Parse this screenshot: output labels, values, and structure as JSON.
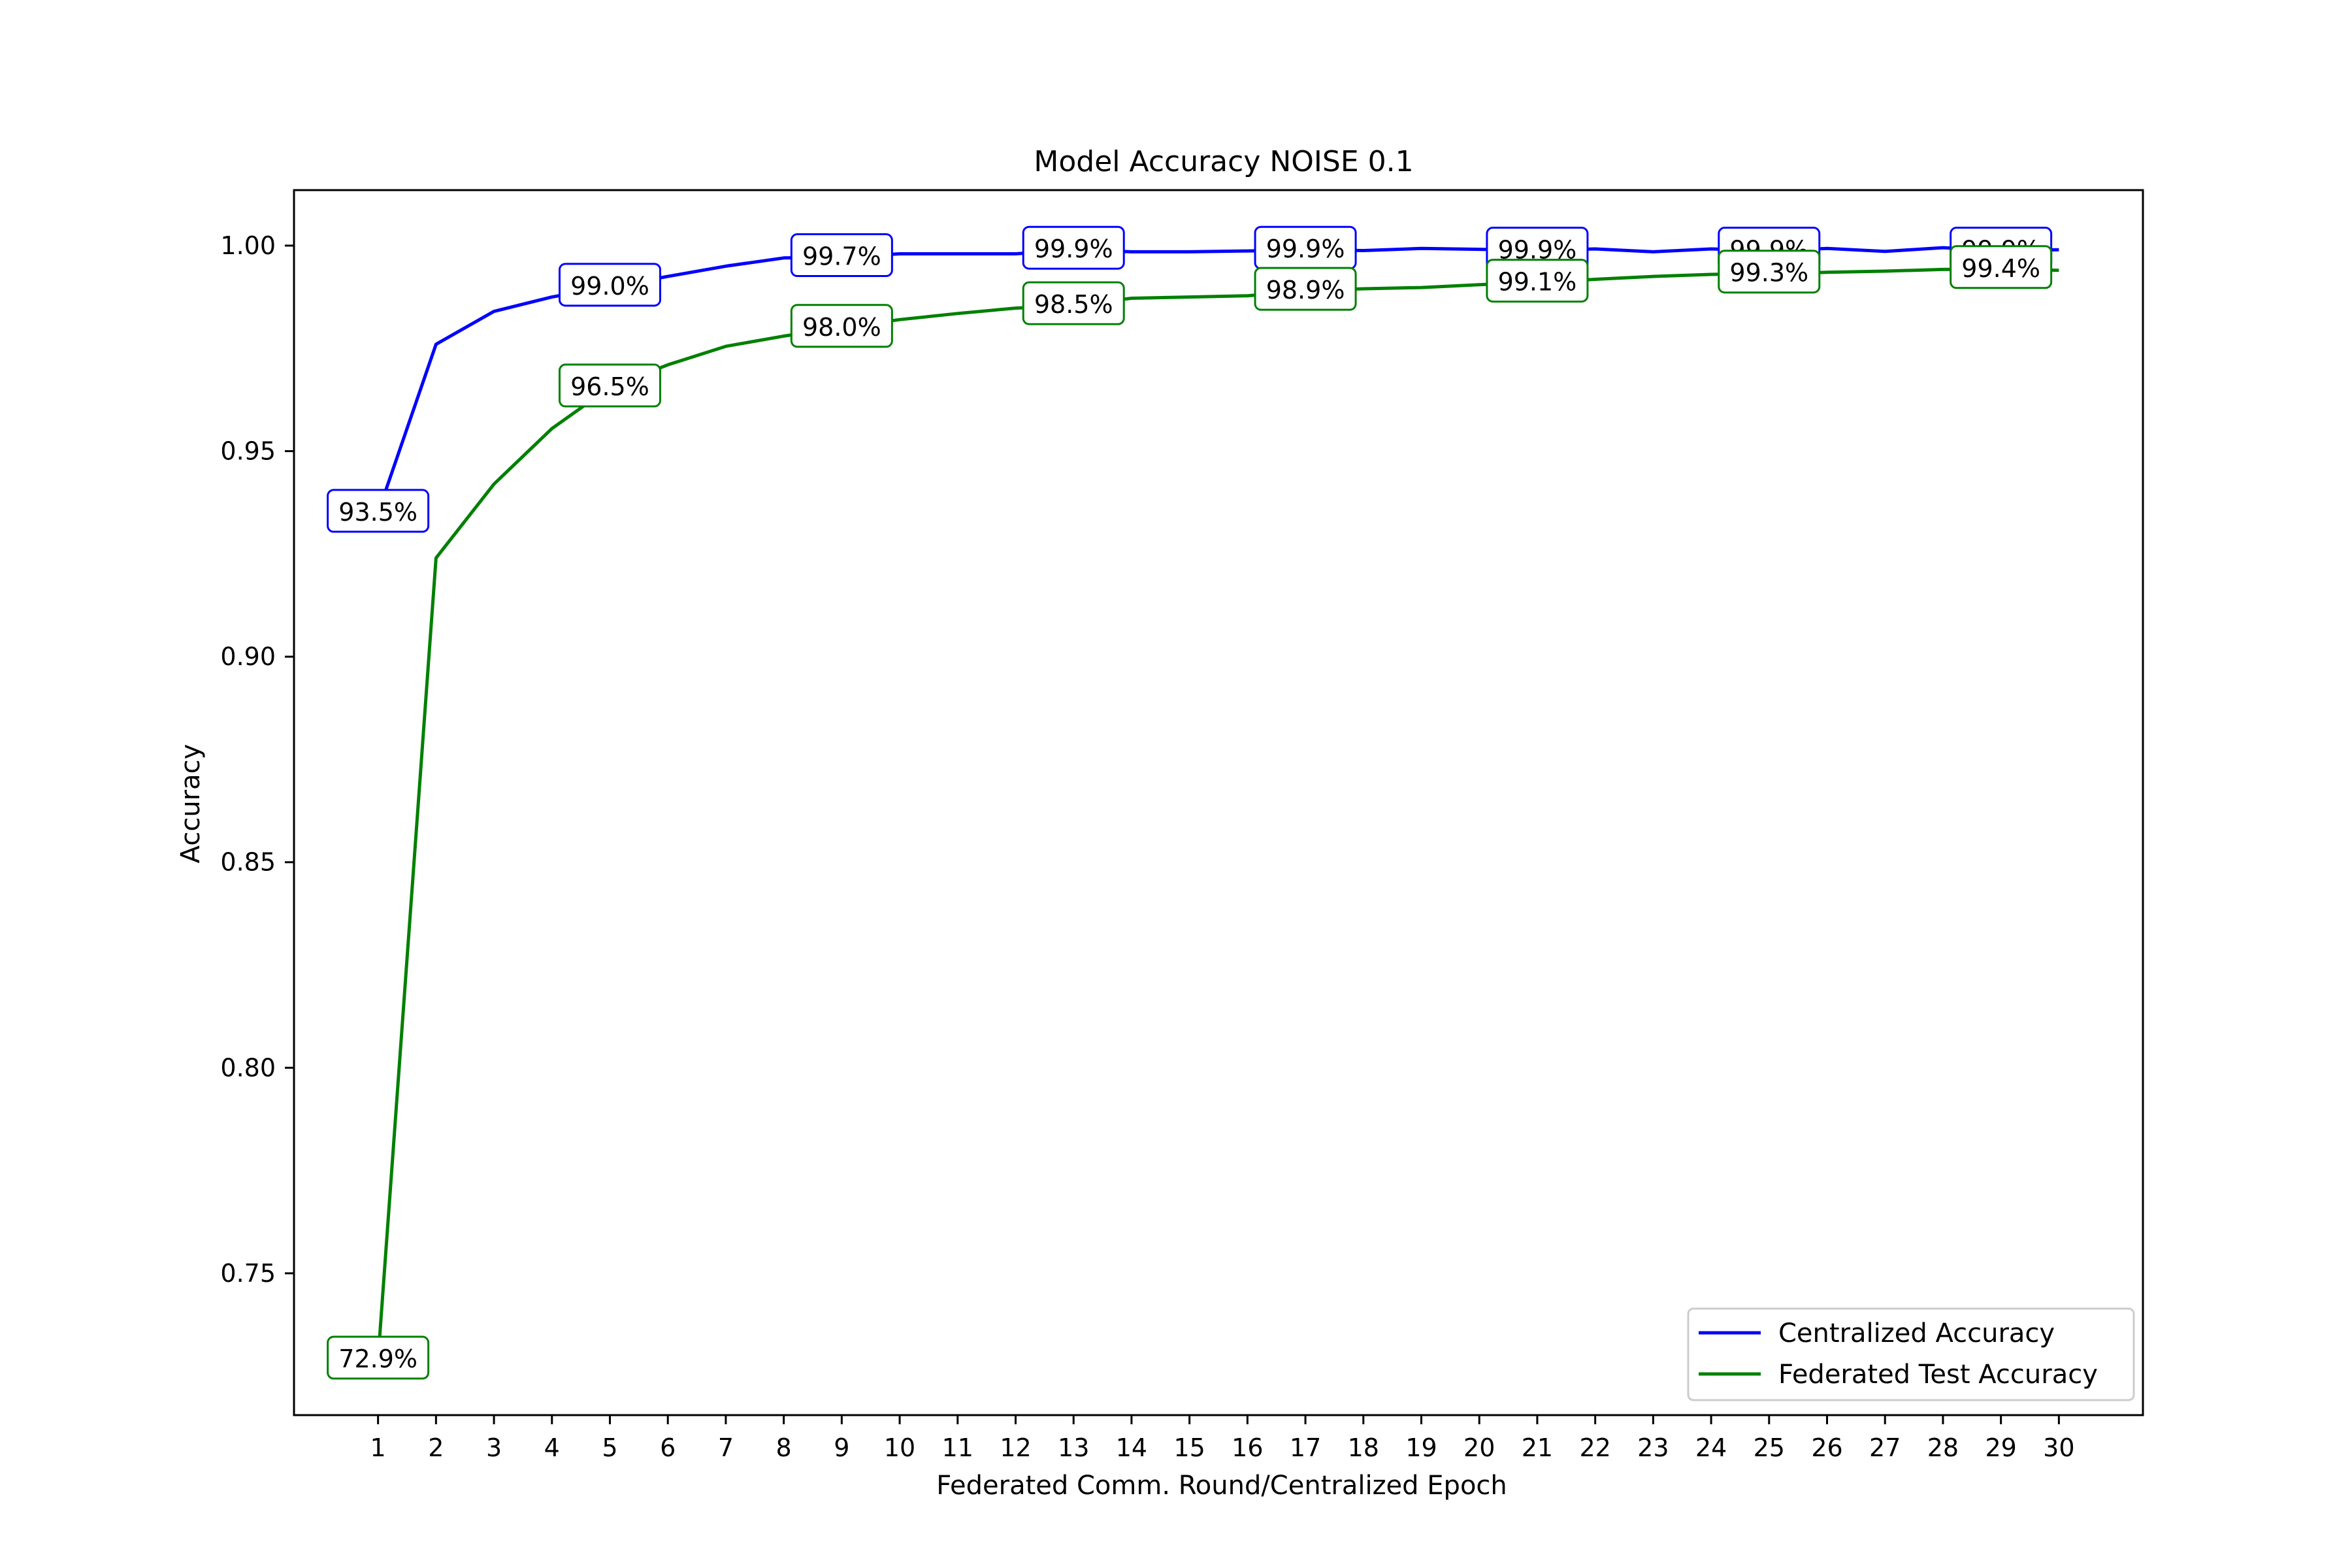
{
  "chart_data": {
    "type": "line",
    "title": "Model Accuracy NOISE 0.1",
    "xlabel": "Federated Comm. Round/Centralized Epoch",
    "ylabel": "Accuracy",
    "x": [
      1,
      2,
      3,
      4,
      5,
      6,
      7,
      8,
      9,
      10,
      11,
      12,
      13,
      14,
      15,
      16,
      17,
      18,
      19,
      20,
      21,
      22,
      23,
      24,
      25,
      26,
      27,
      28,
      29,
      30
    ],
    "x_tick_labels": [
      "1",
      "2",
      "3",
      "4",
      "5",
      "6",
      "7",
      "8",
      "9",
      "10",
      "11",
      "12",
      "13",
      "14",
      "15",
      "16",
      "17",
      "18",
      "19",
      "20",
      "21",
      "22",
      "23",
      "24",
      "25",
      "26",
      "27",
      "28",
      "29",
      "30"
    ],
    "y_ticks": [
      0.75,
      0.8,
      0.85,
      0.9,
      0.95,
      1.0
    ],
    "y_tick_labels": [
      "0.75",
      "0.80",
      "0.85",
      "0.90",
      "0.95",
      "1.00"
    ],
    "xlim": [
      -0.45,
      31.45
    ],
    "ylim": [
      0.7155,
      1.0135
    ],
    "grid": false,
    "legend_position": "bottom-right",
    "series": [
      {
        "name": "Centralized Accuracy",
        "color": "#0000ff",
        "values": [
          0.935,
          0.976,
          0.984,
          0.9875,
          0.99,
          0.9925,
          0.995,
          0.997,
          0.9972,
          0.998,
          0.998,
          0.998,
          0.999,
          0.9985,
          0.9985,
          0.9987,
          0.999,
          0.9988,
          0.9993,
          0.9991,
          0.9988,
          0.9992,
          0.9985,
          0.9992,
          0.9988,
          0.9993,
          0.9986,
          0.9995,
          0.9988,
          0.999
        ],
        "labels": [
          {
            "x": 1,
            "y": 0.935,
            "text": "93.5%"
          },
          {
            "x": 5,
            "y": 0.99,
            "text": "99.0%"
          },
          {
            "x": 9,
            "y": 0.9972,
            "text": "99.7%"
          },
          {
            "x": 13,
            "y": 0.999,
            "text": "99.9%"
          },
          {
            "x": 17,
            "y": 0.999,
            "text": "99.9%"
          },
          {
            "x": 21,
            "y": 0.9988,
            "text": "99.9%"
          },
          {
            "x": 25,
            "y": 0.9988,
            "text": "99.9%"
          },
          {
            "x": 29,
            "y": 0.9988,
            "text": "99.9%"
          }
        ]
      },
      {
        "name": "Federated Test Accuracy",
        "color": "#008000",
        "values": [
          0.729,
          0.924,
          0.942,
          0.9555,
          0.9655,
          0.971,
          0.9755,
          0.978,
          0.98,
          0.982,
          0.9835,
          0.9848,
          0.9855,
          0.9872,
          0.9875,
          0.9878,
          0.989,
          0.9895,
          0.9898,
          0.9905,
          0.991,
          0.9918,
          0.9925,
          0.993,
          0.9932,
          0.9935,
          0.9938,
          0.9942,
          0.9943,
          0.994
        ],
        "labels": [
          {
            "x": 1,
            "y": 0.729,
            "text": "72.9%"
          },
          {
            "x": 5,
            "y": 0.9655,
            "text": "96.5%"
          },
          {
            "x": 9,
            "y": 0.98,
            "text": "98.0%"
          },
          {
            "x": 13,
            "y": 0.9855,
            "text": "98.5%"
          },
          {
            "x": 17,
            "y": 0.989,
            "text": "98.9%"
          },
          {
            "x": 21,
            "y": 0.991,
            "text": "99.1%"
          },
          {
            "x": 25,
            "y": 0.9932,
            "text": "99.3%"
          },
          {
            "x": 29,
            "y": 0.9943,
            "text": "99.4%"
          }
        ]
      }
    ]
  }
}
